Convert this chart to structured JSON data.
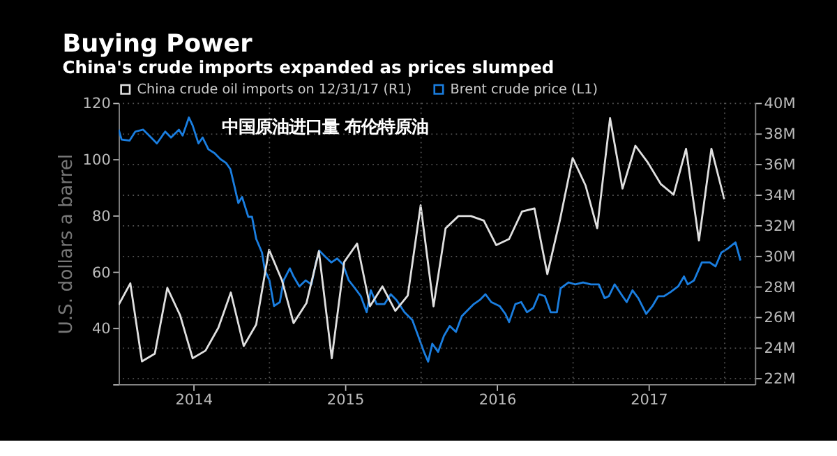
{
  "chart_data": {
    "type": "line",
    "title": "Buying Power",
    "subtitle": "China's crude imports expanded as prices slumped",
    "ylabel": "U.S. dollars a barrel",
    "annotations": [
      "中国原油进口量  布伦特原油"
    ],
    "xlim": [
      "2014-01-03",
      "2018-03-15"
    ],
    "xticks": [
      {
        "value": "2014-07-02",
        "label": "2014"
      },
      {
        "value": "2015-07-02",
        "label": "2015"
      },
      {
        "value": "2016-07-02",
        "label": "2016"
      },
      {
        "value": "2017-07-02",
        "label": "2017"
      }
    ],
    "ylim": [
      20,
      120
    ],
    "yticks": [
      {
        "value": 20,
        "label": null
      },
      40,
      60,
      80,
      100,
      120
    ],
    "y2lim": [
      21.6,
      40
    ],
    "y2ticks": [
      {
        "value": 22,
        "label": "22M"
      },
      {
        "value": 24,
        "label": "24M"
      },
      {
        "value": 26,
        "label": "26M"
      },
      {
        "value": 28,
        "label": "28M"
      },
      {
        "value": 30,
        "label": "30M"
      },
      {
        "value": 32,
        "label": "32M"
      },
      {
        "value": 34,
        "label": "34M"
      },
      {
        "value": 36,
        "label": "36M"
      },
      {
        "value": 38,
        "label": "38M"
      },
      {
        "value": 40,
        "label": "40M"
      }
    ],
    "grid": "y",
    "legend": "top left",
    "line_style": "solid",
    "marker": "none",
    "ref_lines": [
      {
        "axis": "x",
        "value": "2015-01-01",
        "line_style": "dotted",
        "color": "#555555"
      },
      {
        "axis": "x",
        "value": "2016-01-01",
        "line_style": "dotted",
        "color": "#555555"
      },
      {
        "axis": "x",
        "value": "2017-01-01",
        "line_style": "dotted",
        "color": "#555555"
      },
      {
        "axis": "x",
        "value": "2018-01-01",
        "line_style": "dotted",
        "color": "#555555"
      }
    ],
    "series": [
      {
        "name": "China crude oil imports  on 12/31/17 (R1)",
        "color": "#e0e0e0",
        "axis": "y2",
        "x": [
          "2014-01-03",
          "2014-01-31",
          "2014-02-28",
          "2014-03-31",
          "2014-04-30",
          "2014-05-31",
          "2014-06-30",
          "2014-07-31",
          "2014-08-31",
          "2014-09-30",
          "2014-10-31",
          "2014-11-30",
          "2014-12-31",
          "2015-01-31",
          "2015-02-28",
          "2015-03-31",
          "2015-04-30",
          "2015-05-31",
          "2015-06-30",
          "2015-07-31",
          "2015-08-31",
          "2015-09-30",
          "2015-10-31",
          "2015-11-30",
          "2015-12-31",
          "2016-01-31",
          "2016-02-29",
          "2016-03-31",
          "2016-04-30",
          "2016-05-31",
          "2016-06-30",
          "2016-07-31",
          "2016-08-31",
          "2016-09-30",
          "2016-10-31",
          "2016-11-30",
          "2016-12-31",
          "2017-01-31",
          "2017-02-28",
          "2017-03-31",
          "2017-04-30",
          "2017-05-31",
          "2017-06-30",
          "2017-07-31",
          "2017-08-31",
          "2017-09-30",
          "2017-10-31",
          "2017-11-30",
          "2017-12-31"
        ],
        "values": [
          26.8,
          28.2,
          23.1,
          23.6,
          27.9,
          26.1,
          23.3,
          23.8,
          25.3,
          27.6,
          24.1,
          25.5,
          30.4,
          28.4,
          25.6,
          26.9,
          30.3,
          23.3,
          29.6,
          30.8,
          26.7,
          28.0,
          26.4,
          27.4,
          33.3,
          26.7,
          31.8,
          32.6,
          32.6,
          32.3,
          30.7,
          31.1,
          32.9,
          33.1,
          28.8,
          32.3,
          36.4,
          34.6,
          31.8,
          39.0,
          34.4,
          37.2,
          36.1,
          34.7,
          34.0,
          37.0,
          31.0,
          37.0,
          33.7
        ]
      },
      {
        "name": "Brent crude price (L1)",
        "color": "#1a7ee0",
        "axis": "y",
        "x": [
          "2014-01-03",
          "2014-01-10",
          "2014-01-29",
          "2014-02-12",
          "2014-03-03",
          "2014-03-22",
          "2014-04-05",
          "2014-04-25",
          "2014-05-09",
          "2014-05-28",
          "2014-06-06",
          "2014-06-21",
          "2014-06-30",
          "2014-07-14",
          "2014-07-24",
          "2014-08-07",
          "2014-08-22",
          "2014-09-05",
          "2014-09-19",
          "2014-09-29",
          "2014-10-08",
          "2014-10-18",
          "2014-10-27",
          "2014-11-11",
          "2014-11-20",
          "2014-11-30",
          "2014-12-14",
          "2014-12-21",
          "2015-01-01",
          "2015-01-12",
          "2015-01-26",
          "2015-02-04",
          "2015-02-19",
          "2015-02-28",
          "2015-03-14",
          "2015-03-29",
          "2015-04-12",
          "2015-04-22",
          "2015-05-01",
          "2015-05-15",
          "2015-05-30",
          "2015-06-13",
          "2015-06-27",
          "2015-07-11",
          "2015-07-26",
          "2015-08-09",
          "2015-08-23",
          "2015-09-02",
          "2015-09-16",
          "2015-10-05",
          "2015-10-20",
          "2015-11-03",
          "2015-11-22",
          "2015-12-11",
          "2015-12-25",
          "2016-01-08",
          "2016-01-18",
          "2016-01-28",
          "2016-02-11",
          "2016-02-25",
          "2016-03-10",
          "2016-03-25",
          "2016-04-08",
          "2016-04-22",
          "2016-05-07",
          "2016-05-21",
          "2016-06-04",
          "2016-06-18",
          "2016-07-08",
          "2016-07-22",
          "2016-07-31",
          "2016-08-15",
          "2016-08-29",
          "2016-09-12",
          "2016-09-27",
          "2016-10-11",
          "2016-10-25",
          "2016-11-08",
          "2016-11-23",
          "2016-12-02",
          "2016-12-21",
          "2017-01-06",
          "2017-01-25",
          "2017-02-13",
          "2017-03-04",
          "2017-03-18",
          "2017-03-28",
          "2017-04-11",
          "2017-04-30",
          "2017-05-10",
          "2017-05-24",
          "2017-06-07",
          "2017-06-26",
          "2017-07-11",
          "2017-07-25",
          "2017-08-08",
          "2017-08-23",
          "2017-09-11",
          "2017-09-25",
          "2017-10-04",
          "2017-10-19",
          "2017-11-07",
          "2017-11-26",
          "2017-12-10",
          "2017-12-24",
          "2018-01-08",
          "2018-01-27",
          "2018-02-08"
        ],
        "values": [
          110.5,
          107.0,
          106.6,
          109.8,
          110.5,
          107.7,
          105.6,
          109.8,
          107.7,
          110.5,
          108.4,
          114.8,
          112.0,
          105.6,
          107.7,
          103.5,
          102.1,
          100.0,
          98.6,
          96.4,
          90.8,
          84.4,
          86.6,
          79.5,
          79.5,
          71.7,
          66.8,
          60.5,
          56.9,
          47.8,
          49.2,
          56.9,
          61.2,
          58.3,
          54.8,
          56.9,
          55.5,
          62.6,
          67.5,
          65.4,
          63.3,
          64.7,
          62.6,
          56.9,
          54.1,
          51.3,
          45.6,
          53.4,
          48.5,
          48.5,
          52.0,
          49.9,
          45.6,
          42.8,
          37.2,
          31.5,
          28.0,
          34.4,
          31.5,
          37.2,
          40.7,
          38.6,
          44.2,
          46.3,
          48.5,
          49.9,
          52.0,
          49.2,
          47.8,
          45.0,
          42.1,
          48.5,
          49.2,
          45.6,
          47.1,
          52.0,
          51.3,
          45.6,
          45.6,
          54.1,
          56.2,
          55.5,
          56.2,
          55.5,
          55.5,
          50.6,
          51.3,
          55.5,
          51.3,
          49.2,
          53.4,
          50.6,
          45.0,
          47.8,
          51.3,
          51.3,
          52.7,
          54.8,
          58.3,
          55.5,
          56.9,
          63.3,
          63.3,
          61.9,
          66.8,
          68.2,
          70.4,
          64.0
        ]
      }
    ]
  }
}
